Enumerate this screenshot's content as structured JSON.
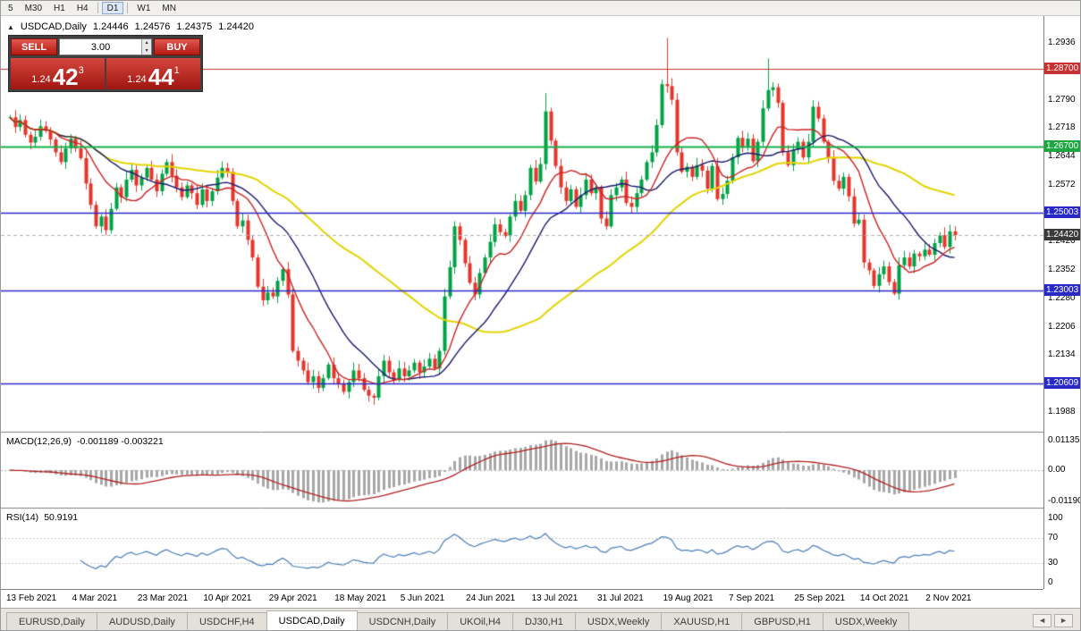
{
  "toolbar": {
    "timeframes": [
      {
        "label": "5",
        "active": false
      },
      {
        "label": "M30",
        "active": false
      },
      {
        "label": "H1",
        "active": false
      },
      {
        "label": "H4",
        "active": false
      },
      {
        "label": "D1",
        "active": true
      },
      {
        "label": "W1",
        "active": false
      },
      {
        "label": "MN",
        "active": false
      }
    ]
  },
  "chart_header": {
    "expander": "▲",
    "symbol": "USDCAD,Daily",
    "open": "1.24446",
    "high": "1.24576",
    "low": "1.24375",
    "close": "1.24420"
  },
  "trade_panel": {
    "sell_label": "SELL",
    "buy_label": "BUY",
    "volume": "3.00",
    "spin_up": "▴",
    "spin_down": "▾",
    "sell_price": {
      "prefix": "1.24",
      "big": "42",
      "sup": "3"
    },
    "buy_price": {
      "prefix": "1.24",
      "big": "44",
      "sup": "1"
    }
  },
  "price_axis": {
    "ticks": [
      "1.2936",
      "1.2790",
      "1.2718",
      "1.2644",
      "1.2572",
      "1.2500",
      "1.2426",
      "1.2352",
      "1.2280",
      "1.2206",
      "1.2134",
      "1.2060",
      "1.1988"
    ],
    "badges": [
      {
        "label": "1.28700",
        "price": 1.287,
        "bg": "#c83232"
      },
      {
        "label": "1.26700",
        "price": 1.267,
        "bg": "#1ea641"
      },
      {
        "label": "1.25003",
        "price": 1.25003,
        "bg": "#2929c8"
      },
      {
        "label": "1.24420",
        "price": 1.2442,
        "bg": "#3a3a3a"
      },
      {
        "label": "1.23003",
        "price": 1.23003,
        "bg": "#2929c8"
      },
      {
        "label": "1.20609",
        "price": 1.20609,
        "bg": "#2929c8"
      }
    ]
  },
  "hlines": [
    {
      "price": 1.287,
      "color": "#c83232",
      "width": 1.2,
      "dash": false
    },
    {
      "price": 1.267,
      "color": "#16b04a",
      "width": 2,
      "dash": false
    },
    {
      "price": 1.25003,
      "color": "#2929c8",
      "width": 1.6,
      "dash": false
    },
    {
      "price": 1.23003,
      "color": "#2929c8",
      "width": 1.6,
      "dash": false
    },
    {
      "price": 1.20609,
      "color": "#2929c8",
      "width": 1.6,
      "dash": false
    },
    {
      "price": 1.2442,
      "color": "#b0b0b0",
      "width": 1,
      "dash": true
    }
  ],
  "colors": {
    "up": "#00a244",
    "down": "#e5352c",
    "ma_fast": "#cc2222",
    "ma_mid": "#1a1a6e",
    "ma_slow": "#e3d400",
    "macd_hist": "#a8a8a8",
    "macd_signal": "#b22222",
    "rsi_line": "#4a7ebb"
  },
  "chart_data": {
    "type": "candlestick",
    "title": "USDCAD,Daily",
    "symbol": "USDCAD",
    "timeframe": "Daily",
    "current_ohlc": {
      "open": 1.24446,
      "high": 1.24576,
      "low": 1.24375,
      "close": 1.2442
    },
    "price_range": [
      1.196,
      1.296
    ],
    "x_labels": [
      "13 Feb 2021",
      "4 Mar 2021",
      "23 Mar 2021",
      "10 Apr 2021",
      "29 Apr 2021",
      "18 May 2021",
      "5 Jun 2021",
      "24 Jun 2021",
      "13 Jul 2021",
      "31 Jul 2021",
      "19 Aug 2021",
      "7 Sep 2021",
      "25 Sep 2021",
      "14 Oct 2021",
      "2 Nov 2021"
    ],
    "x_label_indices": [
      0,
      13,
      26,
      39,
      52,
      65,
      78,
      91,
      104,
      117,
      130,
      143,
      156,
      169,
      182
    ],
    "first_open": 1.2745,
    "closes": [
      1.2745,
      1.272,
      1.2738,
      1.27,
      1.268,
      1.2695,
      1.2722,
      1.271,
      1.2688,
      1.2655,
      1.263,
      1.2665,
      1.269,
      1.2665,
      1.264,
      1.2575,
      1.252,
      1.2465,
      1.249,
      1.2455,
      1.251,
      1.2565,
      1.254,
      1.2585,
      1.261,
      1.257,
      1.259,
      1.2615,
      1.2585,
      1.2555,
      1.26,
      1.263,
      1.2595,
      1.2565,
      1.254,
      1.257,
      1.255,
      1.252,
      1.256,
      1.253,
      1.2555,
      1.259,
      1.2615,
      1.2605,
      1.253,
      1.2465,
      1.248,
      1.243,
      1.2385,
      1.231,
      1.2275,
      1.2295,
      1.2285,
      1.2325,
      1.2355,
      1.229,
      1.2145,
      1.212,
      1.2095,
      1.2065,
      1.208,
      1.205,
      1.2075,
      1.211,
      1.2075,
      1.206,
      1.204,
      1.2065,
      1.2095,
      1.2075,
      1.2045,
      1.203,
      1.2025,
      1.208,
      1.212,
      1.209,
      1.207,
      1.21,
      1.208,
      1.2095,
      1.2115,
      1.209,
      1.2105,
      1.2125,
      1.21,
      1.2145,
      1.2285,
      1.236,
      1.2465,
      1.243,
      1.237,
      1.232,
      1.229,
      1.2345,
      1.2385,
      1.2425,
      1.247,
      1.245,
      1.244,
      1.249,
      1.253,
      1.2505,
      1.2545,
      1.2615,
      1.258,
      1.2625,
      1.276,
      1.2685,
      1.262,
      1.2565,
      1.253,
      1.256,
      1.2515,
      1.2545,
      1.2585,
      1.255,
      1.2565,
      1.2485,
      1.2465,
      1.2545,
      1.2565,
      1.2585,
      1.2525,
      1.2515,
      1.255,
      1.2585,
      1.263,
      1.2655,
      1.2725,
      1.283,
      1.2825,
      1.279,
      1.2655,
      1.2605,
      1.2618,
      1.2592,
      1.2622,
      1.2608,
      1.2562,
      1.262,
      1.2535,
      1.2548,
      1.2582,
      1.2642,
      1.2692,
      1.2668,
      1.269,
      1.2632,
      1.2682,
      1.2768,
      1.2815,
      1.2822,
      1.2782,
      1.2655,
      1.2622,
      1.2662,
      1.2682,
      1.2642,
      1.2682,
      1.2772,
      1.2742,
      1.2682,
      1.2642,
      1.2582,
      1.2562,
      1.2592,
      1.2542,
      1.2472,
      1.2482,
      1.2372,
      1.2352,
      1.2312,
      1.2342,
      1.2362,
      1.2322,
      1.2292,
      1.2365,
      1.2385,
      1.2362,
      1.2395,
      1.2388,
      1.2405,
      1.2392,
      1.2422,
      1.2442,
      1.2412,
      1.2452,
      1.2442
    ],
    "wick_overrides": {
      "72": {
        "low": 1.2007
      },
      "106": {
        "high": 1.2807
      },
      "130": {
        "high": 1.2949
      },
      "150": {
        "high": 1.2896
      },
      "175": {
        "low": 1.2288
      }
    },
    "extremes": {
      "highest": 1.2949,
      "lowest": 1.2007
    },
    "moving_averages": [
      {
        "period": 50,
        "color": "#e3d400",
        "width": 2
      },
      {
        "period": 20,
        "color": "#1a1a6e",
        "width": 1.4
      },
      {
        "period": 10,
        "color": "#cc2222",
        "width": 1.4
      }
    ]
  },
  "indicator_panels": {
    "macd": {
      "title": "MACD(12,26,9)",
      "values": "-0.001189 -0.003221",
      "params": [
        12,
        26,
        9
      ],
      "axis": [
        {
          "label": "0.01135",
          "v": 0.01135
        },
        {
          "label": "0.00",
          "v": 0
        },
        {
          "label": "-0.01190",
          "v": -0.0119
        }
      ]
    },
    "rsi": {
      "title": "RSI(14)",
      "value": "50.9191",
      "period": 14,
      "levels": [
        70,
        30
      ],
      "axis": [
        {
          "label": "100",
          "v": 100
        },
        {
          "label": "70",
          "v": 70
        },
        {
          "label": "30",
          "v": 30
        },
        {
          "label": "0",
          "v": 0
        }
      ]
    }
  },
  "tabs": {
    "items": [
      {
        "label": "EURUSD,Daily",
        "active": false
      },
      {
        "label": "AUDUSD,Daily",
        "active": false
      },
      {
        "label": "USDCHF,H4",
        "active": false
      },
      {
        "label": "USDCAD,Daily",
        "active": true
      },
      {
        "label": "USDCNH,Daily",
        "active": false
      },
      {
        "label": "UKOil,H4",
        "active": false
      },
      {
        "label": "DJ30,H1",
        "active": false
      },
      {
        "label": "USDX,Weekly",
        "active": false
      },
      {
        "label": "XAUUSD,H1",
        "active": false
      },
      {
        "label": "GBPUSD,H1",
        "active": false
      },
      {
        "label": "USDX,Weekly",
        "active": false
      }
    ],
    "scroll_left": "◄",
    "scroll_right": "►"
  }
}
